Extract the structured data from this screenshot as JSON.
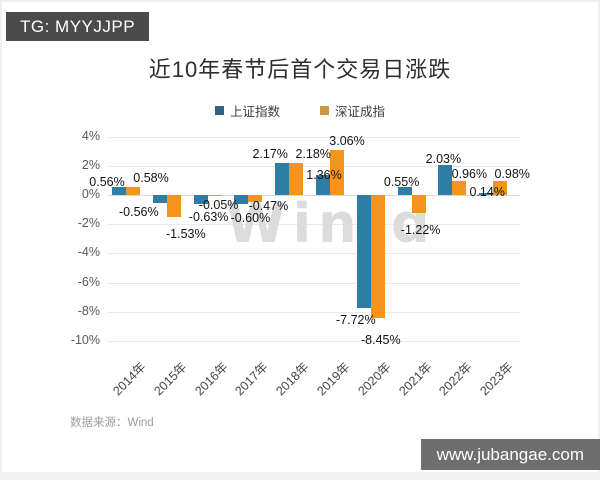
{
  "badges": {
    "top": "TG: MYYJJPP",
    "bottom": "www.jubangae.com"
  },
  "source_note": "数据来源：Wind",
  "watermark": "Win.d",
  "colors": {
    "badge_top_bg": "#4b4b4b",
    "badge_bottom_bg": "#6e6e6e",
    "grid": "#e9e9e9",
    "zero_line": "#d8d8d8"
  },
  "chart_data": {
    "type": "bar",
    "title": "近10年春节后首个交易日涨跌",
    "categories": [
      "2014年",
      "2015年",
      "2016年",
      "2017年",
      "2018年",
      "2019年",
      "2020年",
      "2021年",
      "2022年",
      "2023年"
    ],
    "series": [
      {
        "name": "上证指数",
        "color": "#2e7da4",
        "values": [
          0.56,
          -0.56,
          -0.63,
          -0.6,
          2.17,
          1.36,
          -7.72,
          0.55,
          2.03,
          0.14
        ]
      },
      {
        "name": "深证成指",
        "color": "#f5941d",
        "values": [
          0.58,
          -1.53,
          -0.05,
          -0.47,
          2.18,
          3.06,
          -8.45,
          -1.22,
          0.96,
          0.98
        ]
      }
    ],
    "legend_marker_colors": [
      "#31647c",
      "#cc9742"
    ],
    "ylim": [
      -10,
      4
    ],
    "yticks": [
      4,
      2,
      0,
      -2,
      -4,
      -6,
      -8,
      -10
    ],
    "ytick_suffix": "%",
    "value_suffix": "%",
    "value_decimals": 2,
    "grid": true,
    "legend_position": "top-center",
    "label_offsets": {
      "dx": [
        [
          -19,
          -28,
          1,
          2,
          -19,
          -6,
          -15,
          -10,
          -9,
          -6
        ],
        [
          25,
          19,
          11,
          20,
          24,
          17,
          10,
          9,
          17,
          19
        ]
      ],
      "dy": [
        [
          4,
          0,
          4,
          5,
          0,
          9,
          3,
          4,
          3,
          8
        ],
        [
          0,
          8,
          0,
          -5,
          0,
          0,
          13,
          8,
          2,
          2
        ]
      ]
    }
  }
}
